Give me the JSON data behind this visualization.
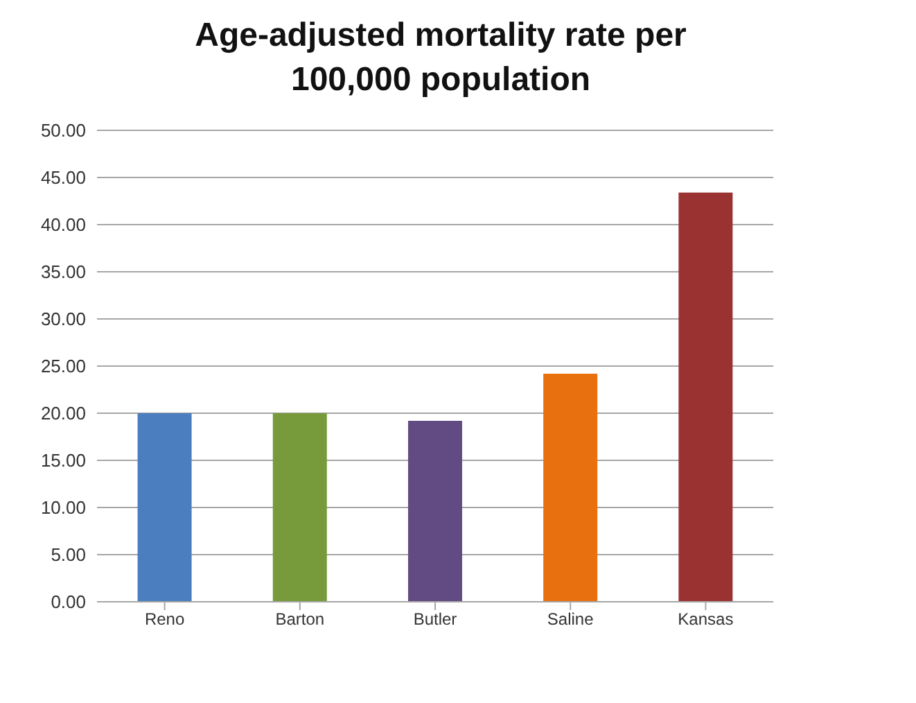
{
  "chart_data": {
    "type": "bar",
    "title": "Age-adjusted mortality rate per 100,000 population",
    "categories": [
      "Reno",
      "Barton",
      "Butler",
      "Saline",
      "Kansas"
    ],
    "values": [
      20.0,
      20.0,
      19.2,
      24.2,
      43.4
    ],
    "colors": [
      "#4a7ebf",
      "#779a3a",
      "#624b82",
      "#e8700f",
      "#9a3232"
    ],
    "ylim": [
      0,
      50
    ],
    "yticks": [
      {
        "value": 0,
        "label": "0.00"
      },
      {
        "value": 5,
        "label": "5.00"
      },
      {
        "value": 10,
        "label": "10.00"
      },
      {
        "value": 15,
        "label": "15.00"
      },
      {
        "value": 20,
        "label": "20.00"
      },
      {
        "value": 25,
        "label": "25.00"
      },
      {
        "value": 30,
        "label": "30.00"
      },
      {
        "value": 35,
        "label": "35.00"
      },
      {
        "value": 40,
        "label": "40.00"
      },
      {
        "value": 45,
        "label": "45.00"
      },
      {
        "value": 50,
        "label": "50.00"
      }
    ],
    "grid": "y"
  }
}
